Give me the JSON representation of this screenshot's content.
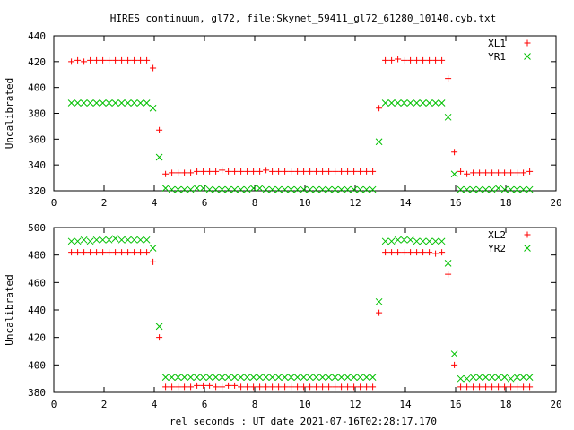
{
  "title": "HIRES continuum, gl72, file:Skynet_59411_gl72_61280_10140.cyb.txt",
  "xlabel": "rel seconds : UT date 2021-07-16T02:28:17.170",
  "colors": {
    "series_a": "#ff0000",
    "series_b": "#00c000",
    "axis": "#000000"
  },
  "chart_data": [
    {
      "type": "scatter",
      "ylabel": "Uncalibrated",
      "xlim": [
        0,
        20
      ],
      "ylim": [
        320,
        440
      ],
      "xticks": [
        0,
        2,
        4,
        6,
        8,
        10,
        12,
        14,
        16,
        18,
        20
      ],
      "yticks": [
        320,
        340,
        360,
        380,
        400,
        420,
        440
      ],
      "legend_position": "top-right",
      "grid": false,
      "series": [
        {
          "name": "XL1",
          "marker": "plus",
          "x": [
            0.7,
            0.95,
            1.2,
            1.45,
            1.7,
            1.95,
            2.2,
            2.45,
            2.7,
            2.95,
            3.2,
            3.45,
            3.7,
            3.95,
            4.2,
            4.45,
            4.7,
            4.95,
            5.2,
            5.45,
            5.7,
            5.95,
            6.2,
            6.45,
            6.7,
            6.95,
            7.2,
            7.45,
            7.7,
            7.95,
            8.2,
            8.45,
            8.7,
            8.95,
            9.2,
            9.45,
            9.7,
            9.95,
            10.2,
            10.45,
            10.7,
            10.95,
            11.2,
            11.45,
            11.7,
            11.95,
            12.2,
            12.45,
            12.7,
            12.95,
            13.2,
            13.45,
            13.7,
            13.95,
            14.2,
            14.45,
            14.7,
            14.95,
            15.2,
            15.45,
            15.7,
            15.95,
            16.2,
            16.45,
            16.7,
            16.95,
            17.2,
            17.45,
            17.7,
            17.95,
            18.2,
            18.45,
            18.7,
            18.95
          ],
          "y": [
            420,
            421,
            420,
            421,
            421,
            421,
            421,
            421,
            421,
            421,
            421,
            421,
            421,
            415,
            367,
            333,
            334,
            334,
            334,
            334,
            335,
            335,
            335,
            335,
            336,
            335,
            335,
            335,
            335,
            335,
            335,
            336,
            335,
            335,
            335,
            335,
            335,
            335,
            335,
            335,
            335,
            335,
            335,
            335,
            335,
            335,
            335,
            335,
            335,
            384,
            421,
            421,
            422,
            421,
            421,
            421,
            421,
            421,
            421,
            421,
            407,
            350,
            335,
            333,
            334,
            334,
            334,
            334,
            334,
            334,
            334,
            334,
            334,
            335
          ]
        },
        {
          "name": "YR1",
          "marker": "cross",
          "x": [
            0.7,
            0.95,
            1.2,
            1.45,
            1.7,
            1.95,
            2.2,
            2.45,
            2.7,
            2.95,
            3.2,
            3.45,
            3.7,
            3.95,
            4.2,
            4.45,
            4.7,
            4.95,
            5.2,
            5.45,
            5.7,
            5.95,
            6.2,
            6.45,
            6.7,
            6.95,
            7.2,
            7.45,
            7.7,
            7.95,
            8.2,
            8.45,
            8.7,
            8.95,
            9.2,
            9.45,
            9.7,
            9.95,
            10.2,
            10.45,
            10.7,
            10.95,
            11.2,
            11.45,
            11.7,
            11.95,
            12.2,
            12.45,
            12.7,
            12.95,
            13.2,
            13.45,
            13.7,
            13.95,
            14.2,
            14.45,
            14.7,
            14.95,
            15.2,
            15.45,
            15.7,
            15.95,
            16.2,
            16.45,
            16.7,
            16.95,
            17.2,
            17.45,
            17.7,
            17.95,
            18.2,
            18.45,
            18.7,
            18.95
          ],
          "y": [
            388,
            388,
            388,
            388,
            388,
            388,
            388,
            388,
            388,
            388,
            388,
            388,
            388,
            384,
            346,
            322,
            321,
            321,
            321,
            321,
            322,
            322,
            321,
            321,
            321,
            321,
            321,
            321,
            321,
            322,
            322,
            321,
            321,
            321,
            321,
            321,
            321,
            321,
            321,
            321,
            321,
            321,
            321,
            321,
            321,
            321,
            321,
            321,
            321,
            358,
            388,
            388,
            388,
            388,
            388,
            388,
            388,
            388,
            388,
            388,
            377,
            333,
            321,
            321,
            321,
            321,
            321,
            321,
            322,
            321,
            321,
            321,
            321,
            321
          ]
        }
      ]
    },
    {
      "type": "scatter",
      "ylabel": "Uncalibrated",
      "xlim": [
        0,
        20
      ],
      "ylim": [
        380,
        500
      ],
      "xticks": [
        0,
        2,
        4,
        6,
        8,
        10,
        12,
        14,
        16,
        18,
        20
      ],
      "yticks": [
        380,
        400,
        420,
        440,
        460,
        480,
        500
      ],
      "legend_position": "top-right",
      "grid": false,
      "series": [
        {
          "name": "XL2",
          "marker": "plus",
          "x": [
            0.7,
            0.95,
            1.2,
            1.45,
            1.7,
            1.95,
            2.2,
            2.45,
            2.7,
            2.95,
            3.2,
            3.45,
            3.7,
            3.95,
            4.2,
            4.45,
            4.7,
            4.95,
            5.2,
            5.45,
            5.7,
            5.95,
            6.2,
            6.45,
            6.7,
            6.95,
            7.2,
            7.45,
            7.7,
            7.95,
            8.2,
            8.45,
            8.7,
            8.95,
            9.2,
            9.45,
            9.7,
            9.95,
            10.2,
            10.45,
            10.7,
            10.95,
            11.2,
            11.45,
            11.7,
            11.95,
            12.2,
            12.45,
            12.7,
            12.95,
            13.2,
            13.45,
            13.7,
            13.95,
            14.2,
            14.45,
            14.7,
            14.95,
            15.2,
            15.45,
            15.7,
            15.95,
            16.2,
            16.45,
            16.7,
            16.95,
            17.2,
            17.45,
            17.7,
            17.95,
            18.2,
            18.45,
            18.7,
            18.95
          ],
          "y": [
            482,
            482,
            482,
            482,
            482,
            482,
            482,
            482,
            482,
            482,
            482,
            482,
            482,
            475,
            420,
            384,
            384,
            384,
            384,
            384,
            385,
            385,
            385,
            384,
            384,
            385,
            385,
            384,
            384,
            384,
            384,
            384,
            384,
            384,
            384,
            384,
            384,
            384,
            384,
            384,
            384,
            384,
            384,
            384,
            384,
            384,
            384,
            384,
            384,
            438,
            482,
            482,
            482,
            482,
            482,
            482,
            482,
            482,
            481,
            482,
            466,
            400,
            384,
            384,
            384,
            384,
            384,
            384,
            384,
            384,
            384,
            384,
            384,
            384
          ]
        },
        {
          "name": "YR2",
          "marker": "cross",
          "x": [
            0.7,
            0.95,
            1.2,
            1.45,
            1.7,
            1.95,
            2.2,
            2.45,
            2.7,
            2.95,
            3.2,
            3.45,
            3.7,
            3.95,
            4.2,
            4.45,
            4.7,
            4.95,
            5.2,
            5.45,
            5.7,
            5.95,
            6.2,
            6.45,
            6.7,
            6.95,
            7.2,
            7.45,
            7.7,
            7.95,
            8.2,
            8.45,
            8.7,
            8.95,
            9.2,
            9.45,
            9.7,
            9.95,
            10.2,
            10.45,
            10.7,
            10.95,
            11.2,
            11.45,
            11.7,
            11.95,
            12.2,
            12.45,
            12.7,
            12.95,
            13.2,
            13.45,
            13.7,
            13.95,
            14.2,
            14.45,
            14.7,
            14.95,
            15.2,
            15.45,
            15.7,
            15.95,
            16.2,
            16.45,
            16.7,
            16.95,
            17.2,
            17.45,
            17.7,
            17.95,
            18.2,
            18.45,
            18.7,
            18.95
          ],
          "y": [
            490,
            490,
            491,
            490,
            491,
            491,
            491,
            492,
            491,
            491,
            491,
            491,
            491,
            485,
            428,
            391,
            391,
            391,
            391,
            391,
            391,
            391,
            391,
            391,
            391,
            391,
            391,
            391,
            391,
            391,
            391,
            391,
            391,
            391,
            391,
            391,
            391,
            391,
            391,
            391,
            391,
            391,
            391,
            391,
            391,
            391,
            391,
            391,
            391,
            446,
            490,
            490,
            491,
            491,
            491,
            490,
            490,
            490,
            490,
            490,
            474,
            408,
            390,
            390,
            391,
            391,
            391,
            391,
            391,
            391,
            390,
            391,
            391,
            391
          ]
        }
      ]
    }
  ]
}
